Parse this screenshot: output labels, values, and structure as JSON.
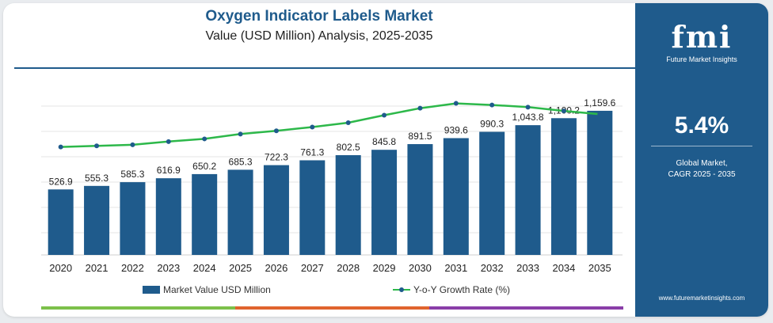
{
  "chart_data": {
    "type": "bar",
    "title": "Oxygen Indicator Labels Market",
    "subtitle": "Value (USD Million) Analysis, 2025-2035",
    "categories": [
      "2020",
      "2021",
      "2022",
      "2023",
      "2024",
      "2025",
      "2026",
      "2027",
      "2028",
      "2029",
      "2030",
      "2031",
      "2032",
      "2033",
      "2034",
      "2035"
    ],
    "value_labels": [
      "526.9",
      "555.3",
      "585.3",
      "616.9",
      "650.2",
      "685.3",
      "722.3",
      "761.3",
      "802.5",
      "845.8",
      "891.5",
      "939.6",
      "990.3",
      "1,043.8",
      "1,100.2",
      "1,159.6"
    ],
    "series": [
      {
        "name": "Market Value USD Million",
        "type": "bar",
        "values": [
          526.9,
          555.3,
          585.3,
          616.9,
          650.2,
          685.3,
          722.3,
          761.3,
          802.5,
          845.8,
          891.5,
          939.6,
          990.3,
          1043.8,
          1100.2,
          1159.6
        ]
      },
      {
        "name": "Y-o-Y Growth Rate (%)",
        "type": "line",
        "values": [
          5.22,
          5.39,
          5.4,
          5.4,
          5.4,
          5.4,
          5.4,
          5.4,
          5.41,
          5.4,
          5.4,
          5.4,
          5.4,
          5.4,
          5.4,
          5.4
        ],
        "display_profile": [
          0.02,
          0.04,
          0.06,
          0.12,
          0.17,
          0.26,
          0.32,
          0.39,
          0.47,
          0.61,
          0.74,
          0.83,
          0.8,
          0.76,
          0.69,
          0.63
        ]
      }
    ],
    "ylim": [
      0,
      1300
    ],
    "grid": true,
    "legend_position": "bottom",
    "colors": {
      "bar": "#1f5b8c",
      "line": "#2db84a",
      "marker": "#1f5b8c"
    }
  },
  "panel": {
    "logo_text": "fmi",
    "logo_subtitle": "Future Market Insights",
    "cagr_value": "5.4%",
    "cagr_label_line1": "Global Market,",
    "cagr_label_line2": "CAGR 2025 - 2035",
    "website": "www.futuremarketinsights.com",
    "background": "#1f5b8c"
  },
  "bottom_bar_colors": [
    "#7cc04a",
    "#e0642e",
    "#8a3ea8"
  ]
}
